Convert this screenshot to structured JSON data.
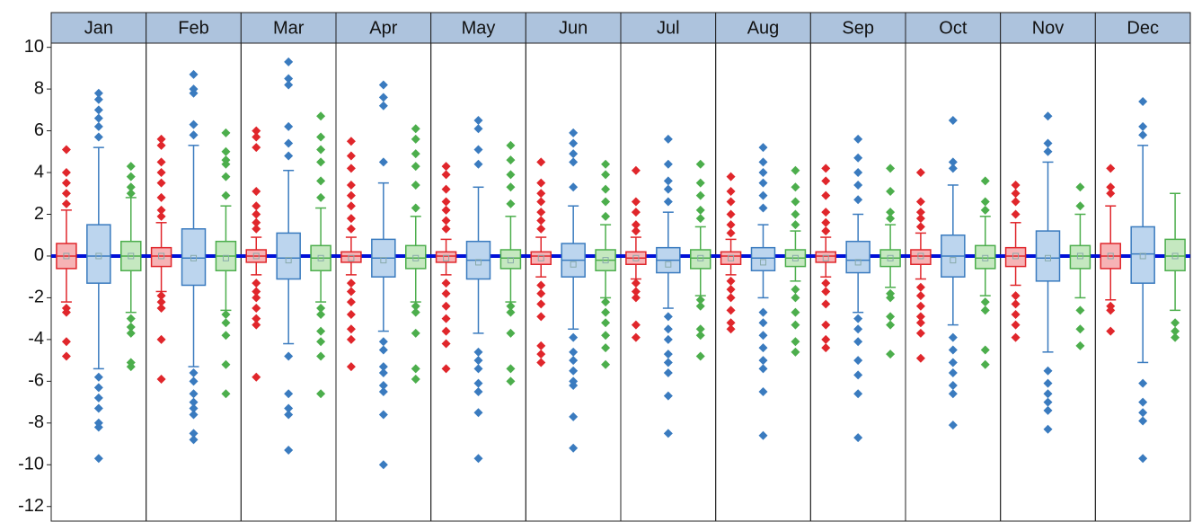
{
  "chart_data": {
    "type": "box",
    "categories": [
      "Jan",
      "Feb",
      "Mar",
      "Apr",
      "May",
      "Jun",
      "Jul",
      "Aug",
      "Sep",
      "Oct",
      "Nov",
      "Dec"
    ],
    "ylim": [
      -12.7,
      10.2
    ],
    "yticks": [
      10,
      8,
      6,
      4,
      2,
      0,
      -2,
      -4,
      -6,
      -8,
      -10,
      -12
    ],
    "reference_line": 0,
    "series": [
      {
        "color": "#e0262b",
        "fill": "#f6b3b5",
        "low": [
          -2.2,
          -1.7,
          -0.9,
          -0.9,
          -0.9,
          -1,
          -1.1,
          -0.9,
          -1,
          -1.1,
          -1.4,
          -2.1
        ],
        "q1": [
          -0.6,
          -0.5,
          -0.3,
          -0.3,
          -0.3,
          -0.4,
          -0.4,
          -0.4,
          -0.3,
          -0.4,
          -0.5,
          -0.6
        ],
        "median": [
          0,
          0,
          0,
          0,
          0,
          0,
          -0.1,
          0,
          0,
          0,
          0,
          0
        ],
        "mean": [
          0,
          0,
          0,
          -0.1,
          -0.1,
          -0.1,
          -0.1,
          -0.1,
          -0.1,
          0,
          0,
          0
        ],
        "q3": [
          0.6,
          0.4,
          0.3,
          0.2,
          0.2,
          0.2,
          0.2,
          0.2,
          0.2,
          0.3,
          0.4,
          0.6
        ],
        "high": [
          2.2,
          1.6,
          0.9,
          0.9,
          0.8,
          0.9,
          0.9,
          0.8,
          0.9,
          1.1,
          1.6,
          2.4
        ],
        "outliers": [
          [
            2.5,
            3,
            3.5,
            4,
            5.1,
            -2.5,
            -2.7,
            -4.1,
            -4.8
          ],
          [
            1.9,
            2.2,
            2.8,
            3.5,
            4,
            4.5,
            5.3,
            5.6,
            -1.9,
            -2.2,
            -2.5,
            -4,
            -5.9
          ],
          [
            1.3,
            1.6,
            2,
            2.4,
            3.1,
            5.2,
            5.7,
            6,
            -1.3,
            -1.7,
            -2,
            -2.5,
            -3,
            -3.3,
            -5.8
          ],
          [
            1.3,
            1.8,
            2.4,
            2.9,
            3.4,
            4.2,
            4.8,
            5.5,
            -1.3,
            -1.7,
            -2.2,
            -2.8,
            -3.5,
            -4,
            -5.3
          ],
          [
            1.3,
            1.7,
            2.2,
            2.6,
            3.2,
            3.9,
            4.3,
            -1.3,
            -1.8,
            -2.4,
            -3,
            -3.6,
            -4.2,
            -5.4
          ],
          [
            1.3,
            1.7,
            2.1,
            2.6,
            3,
            3.5,
            4.5,
            -1.4,
            -1.8,
            -2.3,
            -2.9,
            -4.3,
            -4.7,
            -5.1
          ],
          [
            1.2,
            1.5,
            2.1,
            2.6,
            4.1,
            -1.3,
            -1.7,
            -2,
            -3.3,
            -3.9
          ],
          [
            1.1,
            1.5,
            2,
            2.6,
            3.1,
            3.8,
            -1.2,
            -1.6,
            -2,
            -2.6,
            -3.2,
            -3.5
          ],
          [
            1.2,
            1.6,
            2.1,
            2.9,
            3.6,
            4.2,
            -1.3,
            -1.7,
            -2.3,
            -3.3,
            -4,
            -4.4
          ],
          [
            1.4,
            1.8,
            2.1,
            2.6,
            4,
            -1.5,
            -1.9,
            -2.4,
            -2.9,
            -3.2,
            -3.7,
            -4.9
          ],
          [
            2,
            2.6,
            3,
            3.4,
            -1.9,
            -2.3,
            -2.8,
            -3.3,
            -3.9
          ],
          [
            3,
            3.3,
            4.2,
            -2.4,
            -2.6,
            -3.6
          ]
        ]
      },
      {
        "color": "#3a7bbf",
        "fill": "#bcd5ee",
        "low": [
          -5.4,
          -5.3,
          -4.2,
          -3.6,
          -3.7,
          -3.5,
          -2.5,
          -2,
          -2.7,
          -3.3,
          -4.6,
          -5.1
        ],
        "q1": [
          -1.3,
          -1.4,
          -1.1,
          -1,
          -1.1,
          -1,
          -0.8,
          -0.7,
          -0.8,
          -1,
          -1.2,
          -1.3
        ],
        "median": [
          0,
          -0.1,
          -0.1,
          -0.1,
          -0.2,
          -0.2,
          -0.2,
          -0.1,
          -0.2,
          0,
          -0.1,
          0.1
        ],
        "mean": [
          0,
          -0.1,
          -0.2,
          -0.2,
          -0.3,
          -0.4,
          -0.4,
          -0.3,
          -0.3,
          -0.2,
          -0.1,
          0
        ],
        "q3": [
          1.5,
          1.3,
          1.1,
          0.8,
          0.7,
          0.6,
          0.4,
          0.4,
          0.7,
          1,
          1.2,
          1.4
        ],
        "high": [
          5.2,
          5.3,
          4.1,
          3.5,
          3.3,
          2.4,
          2.1,
          1.5,
          2,
          3.4,
          4.5,
          5.3
        ],
        "outliers": [
          [
            5.7,
            6.2,
            6.6,
            7,
            7.5,
            7.8,
            -5.8,
            -6.3,
            -6.8,
            -7.3,
            -8,
            -8.2,
            -9.7
          ],
          [
            5.8,
            6.3,
            7.8,
            8,
            8.7,
            -5.6,
            -6,
            -6.6,
            -7,
            -7.3,
            -7.6,
            -8.5,
            -8.8
          ],
          [
            4.8,
            5.4,
            6.2,
            8.2,
            8.5,
            9.3,
            -4.8,
            -6.6,
            -7.3,
            -7.6,
            -9.3
          ],
          [
            4.5,
            7.2,
            7.6,
            8.2,
            -4.1,
            -4.5,
            -5.3,
            -5.6,
            -6.2,
            -6.5,
            -7.6,
            -10
          ],
          [
            4.4,
            5.1,
            6.1,
            6.5,
            -4.6,
            -5,
            -5.4,
            -6.1,
            -6.5,
            -7.5,
            -9.7
          ],
          [
            3.3,
            4.5,
            4.9,
            5.4,
            5.9,
            -3.9,
            -4.6,
            -5,
            -5.5,
            -6,
            -6.2,
            -7.7,
            -9.2
          ],
          [
            2.6,
            3.2,
            3.6,
            4.4,
            5.6,
            -2.9,
            -3.5,
            -4,
            -4.7,
            -5.1,
            -5.6,
            -6.7,
            -8.5
          ],
          [
            2.3,
            2.9,
            3.5,
            4,
            4.5,
            5.2,
            -2.7,
            -3.2,
            -3.8,
            -4.4,
            -5,
            -5.4,
            -6.5,
            -8.6
          ],
          [
            2.7,
            3.4,
            4,
            4.7,
            5.6,
            -3,
            -3.5,
            -4.1,
            -5,
            -5.7,
            -6.6,
            -8.7
          ],
          [
            4.2,
            4.5,
            6.5,
            -3.9,
            -4.5,
            -5.1,
            -5.6,
            -6.2,
            -6.6,
            -8.1
          ],
          [
            5,
            5.4,
            6.7,
            -5.5,
            -6.1,
            -6.6,
            -7,
            -7.4,
            -8.3
          ],
          [
            5.8,
            6.2,
            7.4,
            -6.1,
            -7,
            -7.5,
            -7.9,
            -9.7
          ]
        ]
      },
      {
        "color": "#4cae4c",
        "fill": "#c5e8c0",
        "low": [
          -2.7,
          -2.6,
          -2.2,
          -2.2,
          -2.2,
          -2,
          -1.9,
          -1.2,
          -1.5,
          -1.9,
          -2,
          -2.6
        ],
        "q1": [
          -0.7,
          -0.7,
          -0.7,
          -0.6,
          -0.6,
          -0.7,
          -0.6,
          -0.5,
          -0.5,
          -0.6,
          -0.6,
          -0.7
        ],
        "median": [
          0,
          0,
          -0.1,
          -0.1,
          -0.1,
          -0.2,
          -0.1,
          -0.1,
          -0.1,
          -0.1,
          0,
          0
        ],
        "mean": [
          0,
          -0.1,
          -0.1,
          -0.1,
          -0.2,
          -0.2,
          -0.1,
          -0.1,
          -0.1,
          -0.1,
          0,
          0
        ],
        "q3": [
          0.7,
          0.7,
          0.5,
          0.5,
          0.3,
          0.3,
          0.3,
          0.3,
          0.3,
          0.5,
          0.5,
          0.8
        ],
        "high": [
          2.8,
          2.4,
          2.3,
          1.9,
          1.9,
          1.5,
          1.4,
          1.2,
          1.5,
          1.9,
          2,
          3
        ],
        "outliers": [
          [
            3,
            3.3,
            3.8,
            4.3,
            -3,
            -3.4,
            -3.7,
            -5.1,
            -5.3
          ],
          [
            2.9,
            3.8,
            4.4,
            4.6,
            5,
            5.9,
            -2.8,
            -3.2,
            -3.8,
            -5.2,
            -6.6
          ],
          [
            2.8,
            3.6,
            4.5,
            5.1,
            5.7,
            6.7,
            -2.5,
            -2.8,
            -3.6,
            -4.1,
            -4.8,
            -6.6
          ],
          [
            2.3,
            3.4,
            4.3,
            4.9,
            5.6,
            6.1,
            -2.4,
            -2.7,
            -3.7,
            -5.4,
            -5.9
          ],
          [
            2.5,
            3.3,
            3.9,
            4.6,
            5.3,
            -2.4,
            -2.7,
            -3.7,
            -5.4,
            -6
          ],
          [
            1.9,
            2.6,
            3.2,
            3.9,
            4.4,
            -2.2,
            -2.7,
            -3.2,
            -3.8,
            -4.4,
            -5.2
          ],
          [
            1.8,
            2.2,
            2.9,
            3.5,
            4.4,
            -2.1,
            -2.4,
            -3.5,
            -3.8,
            -4.8
          ],
          [
            1.5,
            2,
            2.6,
            3.3,
            4.1,
            -1.6,
            -2,
            -2.7,
            -3.3,
            -4.1,
            -4.6
          ],
          [
            1.8,
            2.1,
            3.1,
            4.2,
            -1.8,
            -2,
            -2.9,
            -3.3,
            -4.7
          ],
          [
            2.2,
            2.6,
            3.6,
            -2.2,
            -2.6,
            -4.5,
            -5.2
          ],
          [
            2.4,
            3.3,
            -2.6,
            -3.5,
            -4.3
          ],
          [
            -3.2,
            -3.6,
            -3.9
          ]
        ]
      }
    ]
  }
}
